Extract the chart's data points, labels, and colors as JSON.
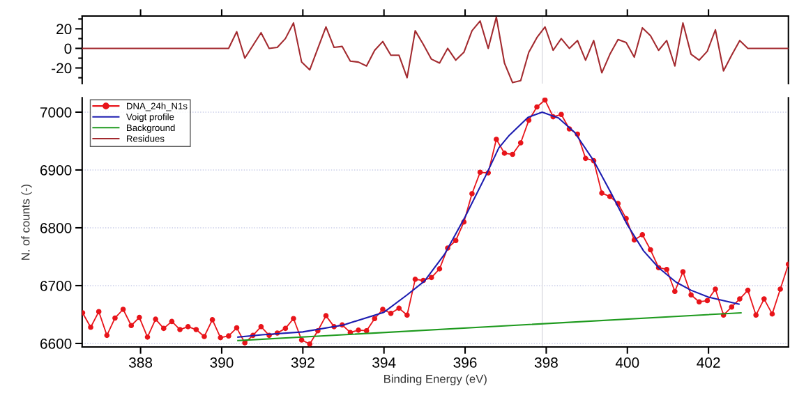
{
  "chart_data": [
    {
      "type": "line",
      "xlim": [
        386.56,
        403.97
      ],
      "ylim": [
        -36,
        33
      ],
      "xticks": [
        {
          "value": 388,
          "label": null
        },
        {
          "value": 390,
          "label": null
        },
        {
          "value": 392,
          "label": null
        },
        {
          "value": 394,
          "label": null
        },
        {
          "value": 396,
          "label": null
        },
        {
          "value": 398,
          "label": null
        },
        {
          "value": 400,
          "label": null
        },
        {
          "value": 402,
          "label": null
        }
      ],
      "yticks": [
        {
          "value": -30,
          "label": null
        },
        -20,
        {
          "value": -10,
          "label": null
        },
        0,
        {
          "value": 10,
          "label": null
        },
        20,
        {
          "value": 30,
          "label": null
        }
      ],
      "tick_labels": "y",
      "grid": false,
      "legend": "bottom",
      "marker": "none",
      "line_style": "solid",
      "ref_lines": [
        {
          "axis": "x",
          "value": 397.9,
          "color": "#d0d0d8"
        }
      ],
      "series": [
        {
          "name": "Residues",
          "color": "#a32a2f",
          "x": [
            386.57,
            386.77,
            386.97,
            387.17,
            387.37,
            387.57,
            387.77,
            387.97,
            388.17,
            388.37,
            388.57,
            388.77,
            388.97,
            389.17,
            389.37,
            389.57,
            389.77,
            389.97,
            390.17,
            390.37,
            390.57,
            390.77,
            390.97,
            391.17,
            391.37,
            391.57,
            391.77,
            391.97,
            392.17,
            392.37,
            392.57,
            392.77,
            392.97,
            393.17,
            393.37,
            393.57,
            393.77,
            393.97,
            394.17,
            394.37,
            394.57,
            394.77,
            394.97,
            395.17,
            395.37,
            395.57,
            395.77,
            395.97,
            396.17,
            396.37,
            396.57,
            396.77,
            396.97,
            397.17,
            397.37,
            397.57,
            397.77,
            397.97,
            398.17,
            398.37,
            398.57,
            398.77,
            398.97,
            399.17,
            399.37,
            399.57,
            399.77,
            399.97,
            400.17,
            400.37,
            400.57,
            400.77,
            400.97,
            401.17,
            401.37,
            401.57,
            401.77,
            401.97,
            402.17,
            402.37,
            402.57,
            402.77,
            402.97,
            403.17,
            403.37,
            403.57,
            403.77,
            403.97
          ],
          "values": [
            0,
            0,
            0,
            0,
            0,
            0,
            0,
            0,
            0,
            0,
            0,
            0,
            0,
            0,
            0,
            0,
            0,
            0,
            0,
            17,
            -10,
            3,
            16,
            0,
            1,
            10,
            26,
            -14,
            -22,
            0,
            22,
            1,
            2,
            -13,
            -14,
            -18,
            -2,
            7,
            -7,
            -7,
            -30,
            18,
            4,
            -11,
            -15,
            0,
            -12,
            -4,
            18,
            28,
            0,
            32,
            -15,
            -35,
            -33,
            -4,
            11,
            22,
            -2,
            10,
            0,
            8,
            -12,
            8,
            -25,
            -6,
            9,
            6,
            -9,
            21,
            13,
            -2,
            8,
            -18,
            26,
            -6,
            -12,
            -3,
            19,
            -23,
            -7,
            8,
            0,
            0,
            0,
            0,
            0,
            0
          ]
        }
      ]
    },
    {
      "type": "line",
      "xlabel": "Binding Energy (eV)",
      "ylabel": "N. of counts (-)",
      "xlim": [
        386.56,
        403.97
      ],
      "ylim": [
        6594,
        7025
      ],
      "xticks": [
        388,
        390,
        392,
        394,
        396,
        398,
        400,
        402
      ],
      "yticks": [
        6600,
        6700,
        6800,
        6900,
        7000
      ],
      "grid": "y",
      "legend": "top left",
      "line_style": "solid",
      "ref_lines": [
        {
          "axis": "x",
          "value": 397.9,
          "color": "#d0d0d8"
        }
      ],
      "series": [
        {
          "name": "DNA_24h_N1s",
          "color": "#e8141a",
          "marker": "circle",
          "x": [
            386.57,
            386.77,
            386.97,
            387.17,
            387.37,
            387.57,
            387.77,
            387.97,
            388.17,
            388.37,
            388.57,
            388.77,
            388.97,
            389.17,
            389.37,
            389.57,
            389.77,
            389.97,
            390.17,
            390.37,
            390.57,
            390.77,
            390.97,
            391.17,
            391.37,
            391.57,
            391.77,
            391.97,
            392.17,
            392.37,
            392.57,
            392.77,
            392.97,
            393.17,
            393.37,
            393.57,
            393.77,
            393.97,
            394.17,
            394.37,
            394.57,
            394.77,
            394.97,
            395.17,
            395.37,
            395.57,
            395.77,
            395.97,
            396.17,
            396.37,
            396.57,
            396.77,
            396.97,
            397.17,
            397.37,
            397.57,
            397.77,
            397.97,
            398.17,
            398.37,
            398.57,
            398.77,
            398.97,
            399.17,
            399.37,
            399.57,
            399.77,
            399.97,
            400.17,
            400.37,
            400.57,
            400.77,
            400.97,
            401.17,
            401.37,
            401.57,
            401.77,
            401.97,
            402.17,
            402.37,
            402.57,
            402.77,
            402.97,
            403.17,
            403.37,
            403.57,
            403.77,
            403.97
          ],
          "values": [
            6653,
            6628,
            6655,
            6614,
            6644,
            6659,
            6631,
            6645,
            6611,
            6642,
            6626,
            6638,
            6624,
            6629,
            6624,
            6612,
            6641,
            6610,
            6613,
            6627,
            6601,
            6614,
            6629,
            6614,
            6618,
            6626,
            6643,
            6606,
            6599,
            6622,
            6648,
            6629,
            6632,
            6619,
            6623,
            6622,
            6643,
            6659,
            6652,
            6661,
            6649,
            6711,
            6709,
            6714,
            6729,
            6765,
            6778,
            6810,
            6859,
            6896,
            6895,
            6953,
            6929,
            6927,
            6947,
            6986,
            7009,
            7021,
            6992,
            6996,
            6971,
            6962,
            6920,
            6916,
            6860,
            6854,
            6842,
            6816,
            6779,
            6788,
            6762,
            6731,
            6728,
            6690,
            6724,
            6684,
            6672,
            6674,
            6694,
            6649,
            6663,
            6677,
            6692,
            6649,
            6677,
            6651,
            6694,
            6737
          ]
        },
        {
          "name": "Voigt profile",
          "color": "#1c1cb0",
          "marker": "none",
          "x": [
            390.4,
            391,
            392,
            393,
            394,
            394.57,
            395,
            395.5,
            396,
            396.5,
            396.83,
            397.09,
            397.55,
            397.9,
            398.3,
            398.7,
            399.16,
            399.6,
            400,
            400.4,
            400.77,
            401.2,
            401.57,
            402,
            402.37,
            402.75
          ],
          "values": [
            6611,
            6615,
            6620,
            6632,
            6654,
            6684,
            6708,
            6755,
            6819,
            6889,
            6938,
            6960,
            6991,
            7000,
            6990,
            6965,
            6917,
            6860,
            6805,
            6760,
            6731,
            6706,
            6692,
            6680,
            6674,
            6668
          ]
        },
        {
          "name": "Background",
          "color": "#1e9a1e",
          "marker": "none",
          "x": [
            390.4,
            402.8
          ],
          "values": [
            6605,
            6653
          ]
        }
      ]
    }
  ]
}
